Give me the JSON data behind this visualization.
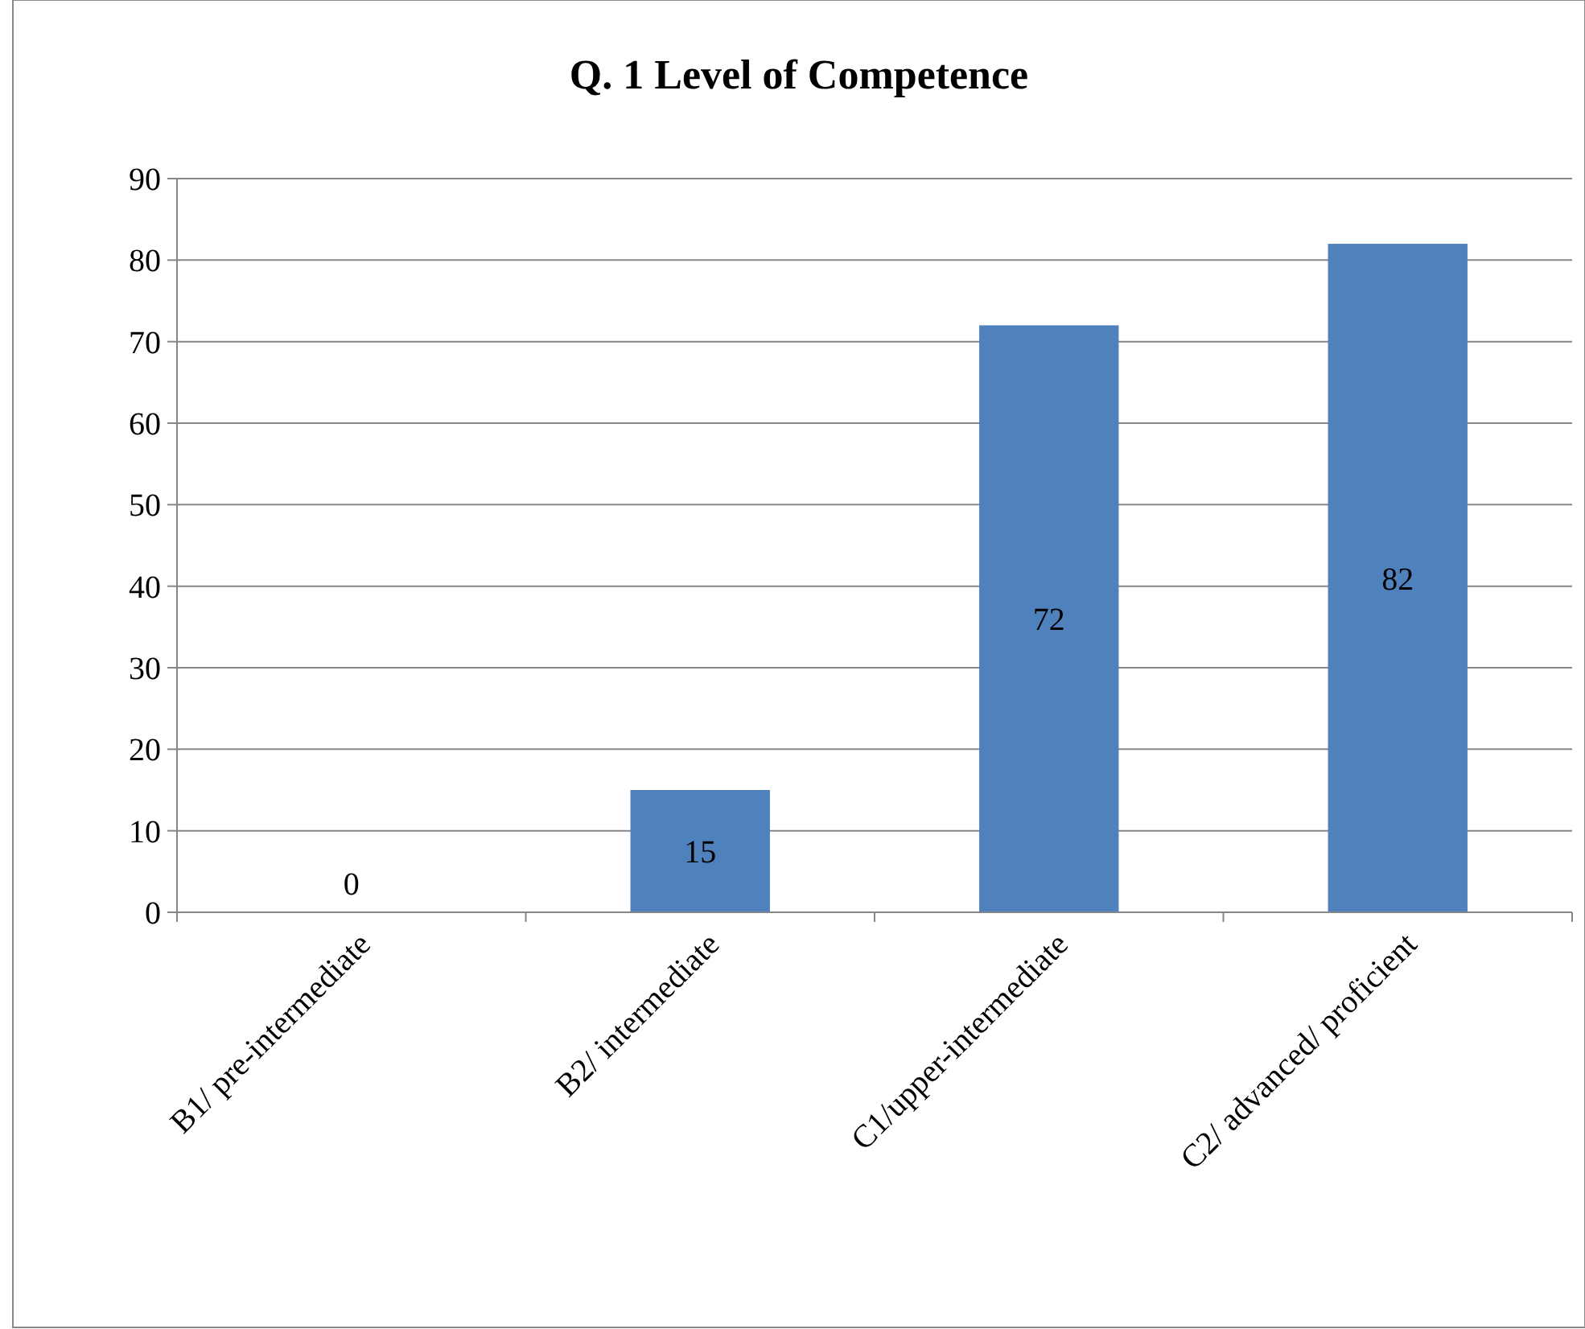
{
  "chart_data": {
    "type": "bar",
    "title": "Q. 1 Level of Competence",
    "categories": [
      "B1/ pre-intermediate",
      "B2/ intermediate",
      "C1/upper-intermediate",
      "C2/ advanced/ proficient"
    ],
    "values": [
      0,
      15,
      72,
      82
    ],
    "color": "#4f81bd",
    "ylim": [
      0,
      90
    ],
    "yticks": [
      0,
      10,
      20,
      30,
      40,
      50,
      60,
      70,
      80,
      90
    ],
    "grid": "y",
    "data_labels": true
  }
}
